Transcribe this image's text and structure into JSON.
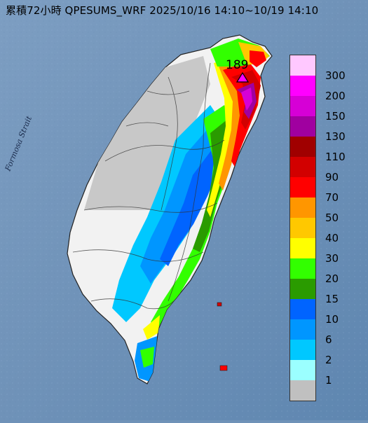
{
  "title": "累積72小時 QPESUMS_WRF 2025/10/16 14:10~10/19 14:10",
  "strait_label": "Formosa Strait",
  "max_marker": {
    "value": "189",
    "icon": "triangle-marker-icon"
  },
  "legend": [
    {
      "label": "300",
      "color": "#ffc8ff"
    },
    {
      "label": "200",
      "color": "#ff00ff"
    },
    {
      "label": "150",
      "color": "#d600d6"
    },
    {
      "label": "130",
      "color": "#a000a0"
    },
    {
      "label": "110",
      "color": "#a00000"
    },
    {
      "label": "90",
      "color": "#d20000"
    },
    {
      "label": "70",
      "color": "#ff0000"
    },
    {
      "label": "50",
      "color": "#ff9600"
    },
    {
      "label": "40",
      "color": "#ffc800"
    },
    {
      "label": "30",
      "color": "#ffff00"
    },
    {
      "label": "20",
      "color": "#32ff00"
    },
    {
      "label": "15",
      "color": "#2a9b00"
    },
    {
      "label": "10",
      "color": "#0064ff"
    },
    {
      "label": "6",
      "color": "#0096ff"
    },
    {
      "label": "2",
      "color": "#00c8ff"
    },
    {
      "label": "1",
      "color": "#9bffff"
    },
    {
      "label": "",
      "color": "#c0c0c0"
    }
  ],
  "colors": {
    "sea": "#6f92b8",
    "land": "#f2f2f2",
    "outline": "#222222"
  }
}
